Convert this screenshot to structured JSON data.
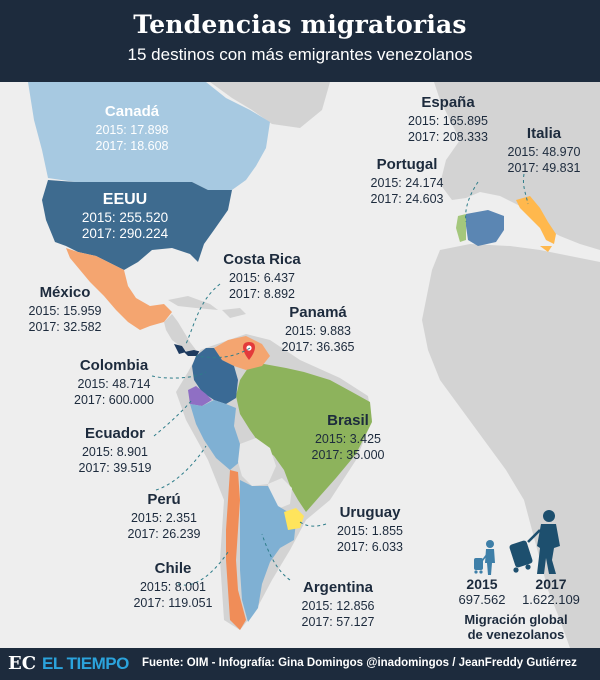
{
  "header": {
    "title": "Tendencias migratorias",
    "subtitle": "15 destinos con más emigrantes venezolanos"
  },
  "countries": [
    {
      "name": "Canadá",
      "y2015": "2015: 17.898",
      "y2017": "2017: 18.608"
    },
    {
      "name": "EEUU",
      "y2015": "2015: 255.520",
      "y2017": "2017: 290.224"
    },
    {
      "name": "México",
      "y2015": "2015: 15.959",
      "y2017": "2017: 32.582"
    },
    {
      "name": "Costa Rica",
      "y2015": "2015: 6.437",
      "y2017": "2017: 8.892"
    },
    {
      "name": "Panamá",
      "y2015": "2015: 9.883",
      "y2017": "2017: 36.365"
    },
    {
      "name": "Colombia",
      "y2015": "2015: 48.714",
      "y2017": "2017: 600.000"
    },
    {
      "name": "Ecuador",
      "y2015": "2015: 8.901",
      "y2017": "2017: 39.519"
    },
    {
      "name": "Perú",
      "y2015": "2015: 2.351",
      "y2017": "2017: 26.239"
    },
    {
      "name": "Brasil",
      "y2015": "2015: 3.425",
      "y2017": "2017: 35.000"
    },
    {
      "name": "Uruguay",
      "y2015": "2015: 1.855",
      "y2017": "2017: 6.033"
    },
    {
      "name": "Chile",
      "y2015": "2015: 8.001",
      "y2017": "2017: 119.051"
    },
    {
      "name": "Argentina",
      "y2015": "2015: 12.856",
      "y2017": "2017: 57.127"
    },
    {
      "name": "España",
      "y2015": "2015: 165.895",
      "y2017": "2017: 208.333"
    },
    {
      "name": "Portugal",
      "y2015": "2015: 24.174",
      "y2017": "2017: 24.603"
    },
    {
      "name": "Italia",
      "y2015": "2015: 48.970",
      "y2017": "2017: 49.831"
    }
  ],
  "global": {
    "y1_label": "2015",
    "y1_value": "697.562",
    "y2_label": "2017",
    "y2_value": "1.622.109",
    "title_line1": "Migración global",
    "title_line2": "de venezolanos"
  },
  "footer": {
    "logo_mark": "EC",
    "brand": "EL TIEMPO",
    "source": "Fuente: OIM - Infografía: Gina Domingos @inadomingos / JeanFreddy Gutiérrez"
  },
  "colors": {
    "header_bg": "#1d2b3d",
    "ocean": "#eeeeee",
    "land": "#d3d3d3",
    "canada": "#a7c9e1",
    "usa": "#3e6b8f",
    "mexico": "#f4a570",
    "colombia": "#3a6a95",
    "venezuela": "#f4a570",
    "brasil": "#8db35c",
    "ecuador": "#8f6fc4",
    "peru": "#7fb0d3",
    "chile": "#f08d58",
    "argentina": "#7fb0d3",
    "uruguay": "#ffe45c",
    "spain": "#5b86b3",
    "portugal": "#a4c77c",
    "italy": "#ffb84d",
    "brand_blue": "#2ba3dc"
  }
}
